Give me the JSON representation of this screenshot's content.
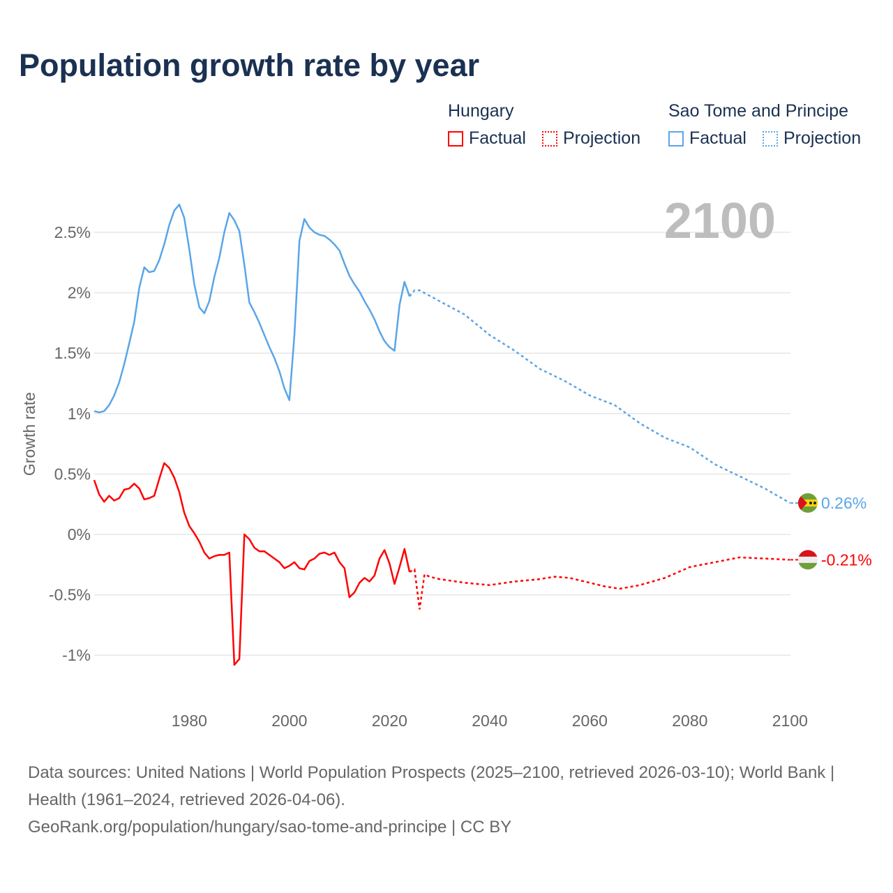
{
  "title": "Population growth rate by year",
  "legend": [
    {
      "country": "Hungary",
      "factual": "Factual",
      "projection": "Projection",
      "color": "#ff0000"
    },
    {
      "country": "Sao Tome and Principe",
      "factual": "Factual",
      "projection": "Projection",
      "color": "#5aa5e8"
    }
  ],
  "footer": {
    "sources": "Data sources: United Nations | World Population Prospects (2025–2100, retrieved 2026-03-10); World Bank | Health (1961–2024, retrieved 2026-04-06).",
    "link": "GeoRank.org/population/hungary/sao-tome-and-principe | CC BY"
  },
  "chart_data": {
    "type": "line",
    "title": "Population growth rate by year",
    "ylabel": "Growth rate",
    "xlabel": "",
    "year_display": "2100",
    "xlim": [
      1961,
      2100
    ],
    "ylim": [
      -1.25,
      2.85
    ],
    "xticks": [
      1980,
      2000,
      2020,
      2040,
      2060,
      2080,
      2100
    ],
    "yticks": [
      -1,
      -0.5,
      0,
      0.5,
      1,
      1.5,
      2,
      2.5
    ],
    "ytick_labels": [
      "-1%",
      "-0.5%",
      "0%",
      "0.5%",
      "1%",
      "1.5%",
      "2%",
      "2.5%"
    ],
    "grid": true,
    "series": [
      {
        "name": "Hungary",
        "color": "#ff0000",
        "end_label": "-0.21%",
        "flag": "hungary-flag",
        "factual": {
          "x": [
            1961,
            1962,
            1963,
            1964,
            1965,
            1966,
            1967,
            1968,
            1969,
            1970,
            1971,
            1972,
            1973,
            1974,
            1975,
            1976,
            1977,
            1978,
            1979,
            1980,
            1981,
            1982,
            1983,
            1984,
            1985,
            1986,
            1987,
            1988,
            1989,
            1990,
            1991,
            1992,
            1993,
            1994,
            1995,
            1996,
            1997,
            1998,
            1999,
            2000,
            2001,
            2002,
            2003,
            2004,
            2005,
            2006,
            2007,
            2008,
            2009,
            2010,
            2011,
            2012,
            2013,
            2014,
            2015,
            2016,
            2017,
            2018,
            2019,
            2020,
            2021,
            2022,
            2023,
            2024
          ],
          "y": [
            0.45,
            0.33,
            0.27,
            0.32,
            0.28,
            0.3,
            0.37,
            0.38,
            0.42,
            0.38,
            0.29,
            0.3,
            0.32,
            0.46,
            0.59,
            0.55,
            0.47,
            0.35,
            0.18,
            0.07,
            0.01,
            -0.06,
            -0.15,
            -0.2,
            -0.18,
            -0.17,
            -0.17,
            -0.15,
            -1.08,
            -1.03,
            0.0,
            -0.04,
            -0.11,
            -0.14,
            -0.14,
            -0.17,
            -0.2,
            -0.23,
            -0.28,
            -0.26,
            -0.23,
            -0.28,
            -0.29,
            -0.22,
            -0.2,
            -0.16,
            -0.15,
            -0.17,
            -0.15,
            -0.23,
            -0.28,
            -0.52,
            -0.48,
            -0.4,
            -0.36,
            -0.39,
            -0.34,
            -0.2,
            -0.13,
            -0.24,
            -0.41,
            -0.27,
            -0.12,
            -0.31
          ]
        },
        "projection": {
          "x": [
            2024,
            2025,
            2026,
            2027,
            2028,
            2030,
            2035,
            2040,
            2045,
            2050,
            2053,
            2056,
            2060,
            2063,
            2066,
            2070,
            2075,
            2080,
            2085,
            2090,
            2095,
            2100
          ],
          "y": [
            -0.31,
            -0.29,
            -0.62,
            -0.33,
            -0.35,
            -0.37,
            -0.4,
            -0.42,
            -0.39,
            -0.37,
            -0.35,
            -0.36,
            -0.4,
            -0.43,
            -0.45,
            -0.42,
            -0.36,
            -0.27,
            -0.23,
            -0.19,
            -0.2,
            -0.21
          ]
        }
      },
      {
        "name": "Sao Tome and Principe",
        "color": "#5aa5e8",
        "end_label": "0.26%",
        "flag": "sao-tome-flag",
        "factual": {
          "x": [
            1961,
            1962,
            1963,
            1964,
            1965,
            1966,
            1967,
            1968,
            1969,
            1970,
            1971,
            1972,
            1973,
            1974,
            1975,
            1976,
            1977,
            1978,
            1979,
            1980,
            1981,
            1982,
            1983,
            1984,
            1985,
            1986,
            1987,
            1988,
            1989,
            1990,
            1991,
            1992,
            1993,
            1994,
            1995,
            1996,
            1997,
            1998,
            1999,
            2000,
            2001,
            2002,
            2003,
            2004,
            2005,
            2006,
            2007,
            2008,
            2009,
            2010,
            2011,
            2012,
            2013,
            2014,
            2015,
            2016,
            2017,
            2018,
            2019,
            2020,
            2021,
            2022,
            2023,
            2024
          ],
          "y": [
            1.02,
            1.01,
            1.02,
            1.07,
            1.15,
            1.26,
            1.41,
            1.58,
            1.76,
            2.04,
            2.21,
            2.17,
            2.18,
            2.27,
            2.4,
            2.56,
            2.68,
            2.73,
            2.62,
            2.36,
            2.07,
            1.88,
            1.83,
            1.93,
            2.13,
            2.29,
            2.5,
            2.66,
            2.6,
            2.51,
            2.23,
            1.92,
            1.84,
            1.75,
            1.65,
            1.55,
            1.46,
            1.35,
            1.21,
            1.11,
            1.65,
            2.43,
            2.61,
            2.54,
            2.5,
            2.48,
            2.47,
            2.44,
            2.4,
            2.35,
            2.24,
            2.14,
            2.07,
            2.01,
            1.93,
            1.86,
            1.78,
            1.68,
            1.6,
            1.55,
            1.52,
            1.9,
            2.09,
            1.97
          ]
        },
        "projection": {
          "x": [
            2024,
            2025,
            2026,
            2030,
            2035,
            2040,
            2045,
            2050,
            2055,
            2060,
            2065,
            2070,
            2075,
            2080,
            2085,
            2090,
            2095,
            2100
          ],
          "y": [
            1.97,
            2.02,
            2.02,
            1.93,
            1.82,
            1.65,
            1.52,
            1.37,
            1.27,
            1.15,
            1.07,
            0.92,
            0.8,
            0.72,
            0.58,
            0.48,
            0.38,
            0.26
          ]
        }
      }
    ]
  }
}
